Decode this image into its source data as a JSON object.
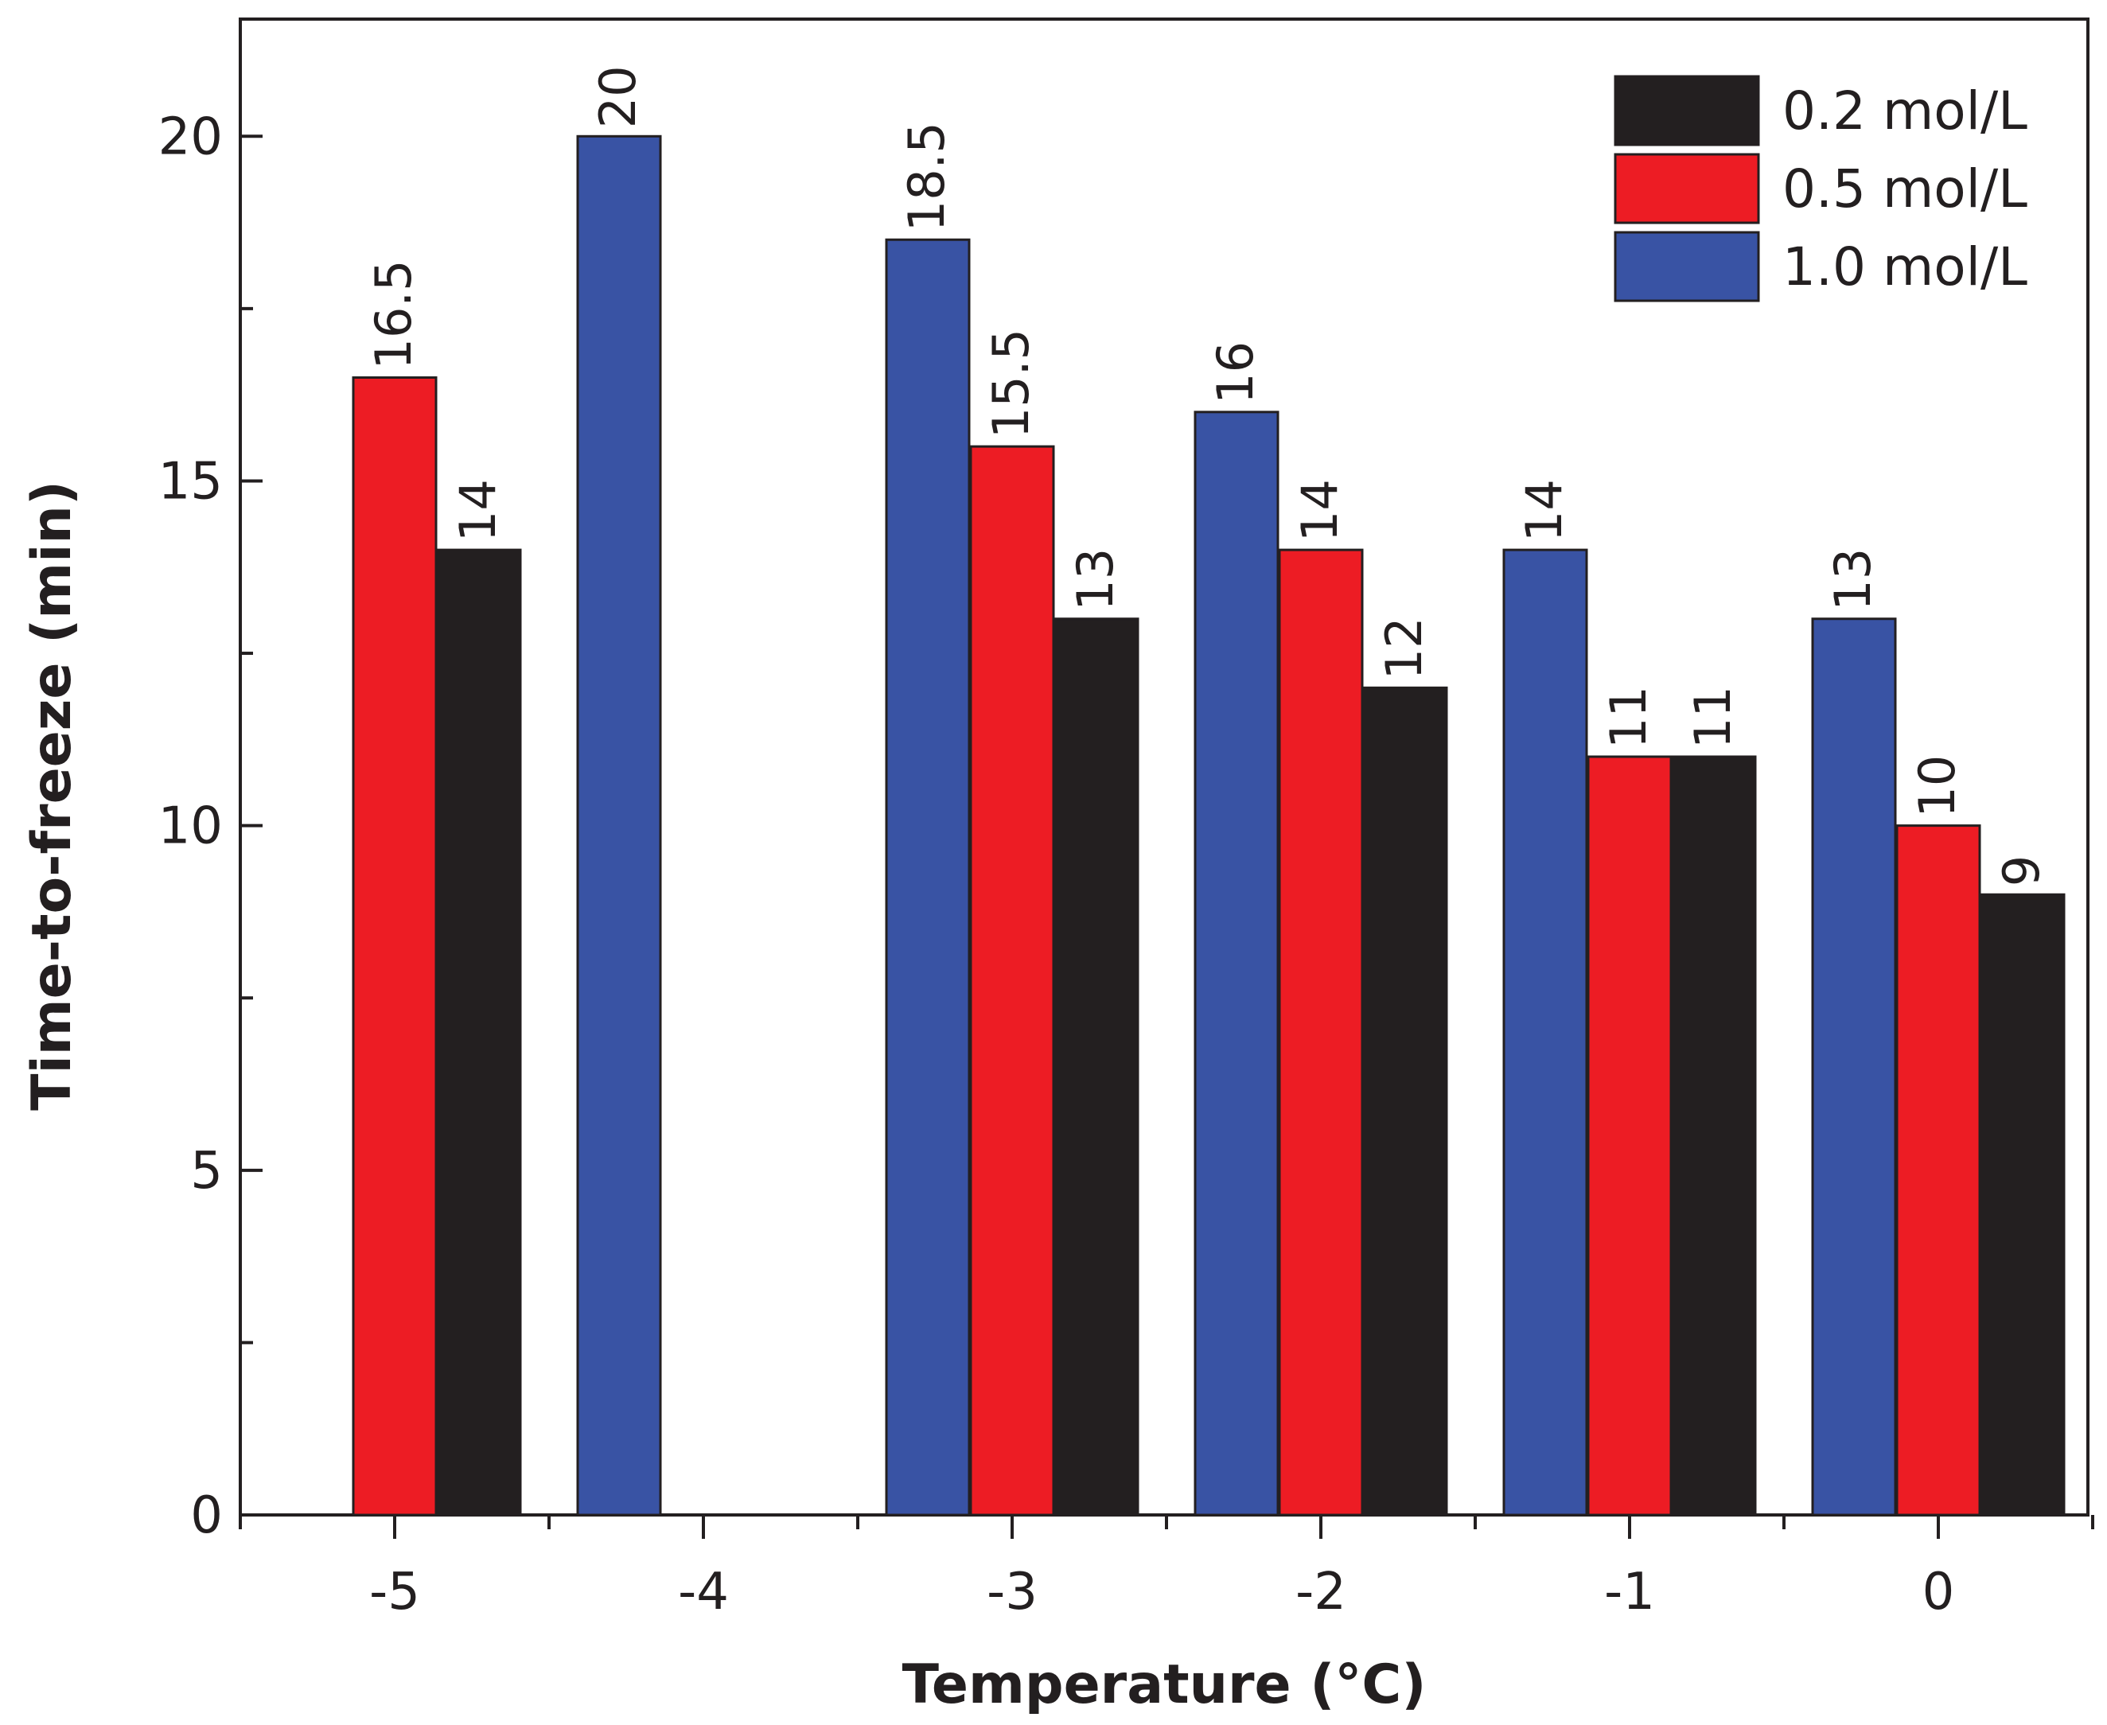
{
  "chart_data": {
    "type": "bar",
    "title": "",
    "xlabel": "Temperature (°C)",
    "ylabel": "Time-to-freeze (min)",
    "ylim": [
      0,
      21.7
    ],
    "y_ticks": [
      0,
      5,
      10,
      15,
      20
    ],
    "categories": [
      "-5",
      "-4",
      "-3",
      "-2",
      "-1",
      "0"
    ],
    "series": [
      {
        "name": "1.0 mol/L",
        "color": "#3953a4",
        "values": [
          null,
          20,
          18.5,
          16,
          14,
          13
        ],
        "labels": [
          "",
          "20",
          "18.5",
          "16",
          "14",
          "13"
        ]
      },
      {
        "name": "0.5 mol/L",
        "color": "#ed1c24",
        "values": [
          16.5,
          null,
          15.5,
          14,
          11,
          10
        ],
        "labels": [
          "16.5",
          "",
          "15.5",
          "14",
          "11",
          "10"
        ]
      },
      {
        "name": "0.2 mol/L",
        "color": "#231f20",
        "values": [
          14,
          null,
          13,
          12,
          11,
          9
        ],
        "labels": [
          "14",
          "",
          "13",
          "12",
          "11",
          "9"
        ]
      }
    ],
    "legend": {
      "position": "top-right",
      "order": [
        "0.2 mol/L",
        "0.5 mol/L",
        "1.0 mol/L"
      ]
    },
    "grid": false
  }
}
